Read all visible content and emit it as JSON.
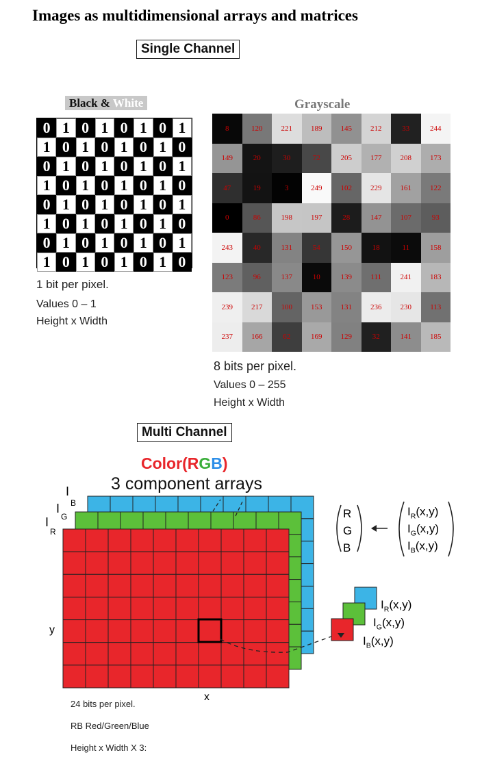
{
  "title": "Images as multidimensional arrays and matrices",
  "single_channel": {
    "label": "Single Channel",
    "bw": {
      "title_black": "Black & ",
      "title_white": "White",
      "values": [
        [
          0,
          1,
          0,
          1,
          0,
          1,
          0,
          1
        ],
        [
          1,
          0,
          1,
          0,
          1,
          0,
          1,
          0
        ],
        [
          0,
          1,
          0,
          1,
          0,
          1,
          0,
          1
        ],
        [
          1,
          0,
          1,
          0,
          1,
          0,
          1,
          0
        ],
        [
          0,
          1,
          0,
          1,
          0,
          1,
          0,
          1
        ],
        [
          1,
          0,
          1,
          0,
          1,
          0,
          1,
          0
        ],
        [
          0,
          1,
          0,
          1,
          0,
          1,
          0,
          1
        ],
        [
          1,
          0,
          1,
          0,
          1,
          0,
          1,
          0
        ]
      ],
      "notes": [
        "1 bit per pixel.",
        "Values 0 – 1",
        "Height x Width"
      ],
      "colors": {
        "black": "#000000",
        "white": "#ffffff"
      }
    },
    "grayscale": {
      "title": "Grayscale",
      "values": [
        [
          8,
          120,
          221,
          189,
          145,
          212,
          33,
          244
        ],
        [
          149,
          20,
          30,
          72,
          205,
          177,
          208,
          173
        ],
        [
          47,
          19,
          3,
          249,
          102,
          229,
          161,
          122
        ],
        [
          0,
          86,
          198,
          197,
          28,
          147,
          107,
          93
        ],
        [
          243,
          40,
          131,
          54,
          150,
          18,
          11,
          158
        ],
        [
          123,
          96,
          137,
          10,
          139,
          111,
          241,
          183
        ],
        [
          239,
          217,
          100,
          153,
          131,
          236,
          230,
          113
        ],
        [
          237,
          166,
          62,
          169,
          129,
          32,
          141,
          185
        ]
      ],
      "notes": [
        "8 bits per pixel.",
        "Values 0 – 255",
        "Height x Width"
      ],
      "text_color": "#cc0000"
    }
  },
  "multi_channel": {
    "label": "Multi Channel",
    "title_parts": [
      {
        "text": "Color",
        "color": "#e8262b"
      },
      {
        "text": "(",
        "color": "#e8262b"
      },
      {
        "text": "R",
        "color": "#e8262b"
      },
      {
        "text": "G",
        "color": "#3aae3a"
      },
      {
        "text": "B",
        "color": "#2c8ee8"
      },
      {
        "text": ")",
        "color": "#e8262b"
      }
    ],
    "subtitle": "3 component arrays",
    "layer_labels": {
      "B": "B",
      "G": "G",
      "R": "R",
      "I": "I"
    },
    "axis_x": "x",
    "axis_y": "y",
    "vector_left": [
      "R",
      "G",
      "B"
    ],
    "vector_right_base": "I",
    "vector_right": [
      {
        "sub": "R",
        "arg": "(x,y)"
      },
      {
        "sub": "G",
        "arg": "(x,y)"
      },
      {
        "sub": "B",
        "arg": "(x,y)"
      }
    ],
    "pixel_labels": [
      {
        "sub": "R",
        "arg": "(x,y)"
      },
      {
        "sub": "G",
        "arg": "(x,y)"
      },
      {
        "sub": "B",
        "arg": "(x,y)"
      }
    ],
    "notes": [
      "24 bits per pixel.",
      "RB Red/Green/Blue",
      "Height x Width X 3:"
    ],
    "colors": {
      "red": "#e8262b",
      "green": "#5cc03a",
      "blue": "#3cb4e6"
    }
  }
}
